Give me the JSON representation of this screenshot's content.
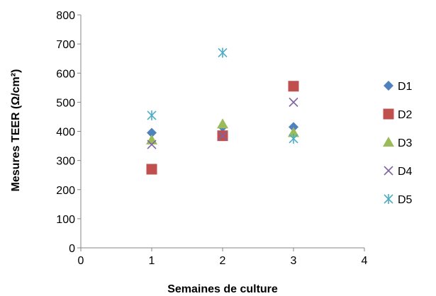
{
  "chart_data": {
    "type": "scatter",
    "title": "",
    "xlabel": "Semaines de culture",
    "ylabel": "Mesures TEER (Ω/cm²)",
    "xlim": [
      0,
      4
    ],
    "ylim": [
      0,
      800
    ],
    "xticks": [
      0,
      1,
      2,
      3,
      4
    ],
    "yticks": [
      0,
      100,
      200,
      300,
      400,
      500,
      600,
      700,
      800
    ],
    "grid": false,
    "legend_position": "right",
    "series": [
      {
        "name": "D1",
        "marker": "diamond",
        "color": "#4F81BD",
        "points": [
          {
            "x": 1,
            "y": 395
          },
          {
            "x": 2,
            "y": 415
          },
          {
            "x": 3,
            "y": 415
          }
        ]
      },
      {
        "name": "D2",
        "marker": "square",
        "color": "#C0504D",
        "points": [
          {
            "x": 1,
            "y": 270
          },
          {
            "x": 2,
            "y": 385
          },
          {
            "x": 3,
            "y": 555
          }
        ]
      },
      {
        "name": "D3",
        "marker": "triangle",
        "color": "#9BBB59",
        "points": [
          {
            "x": 1,
            "y": 370
          },
          {
            "x": 2,
            "y": 425
          },
          {
            "x": 3,
            "y": 395
          }
        ]
      },
      {
        "name": "D4",
        "marker": "x",
        "color": "#8064A2",
        "points": [
          {
            "x": 1,
            "y": 355
          },
          {
            "x": 2,
            "y": 385
          },
          {
            "x": 3,
            "y": 500
          }
        ]
      },
      {
        "name": "D5",
        "marker": "star",
        "color": "#4BACC6",
        "points": [
          {
            "x": 1,
            "y": 455
          },
          {
            "x": 2,
            "y": 670
          },
          {
            "x": 3,
            "y": 375
          }
        ]
      }
    ]
  }
}
